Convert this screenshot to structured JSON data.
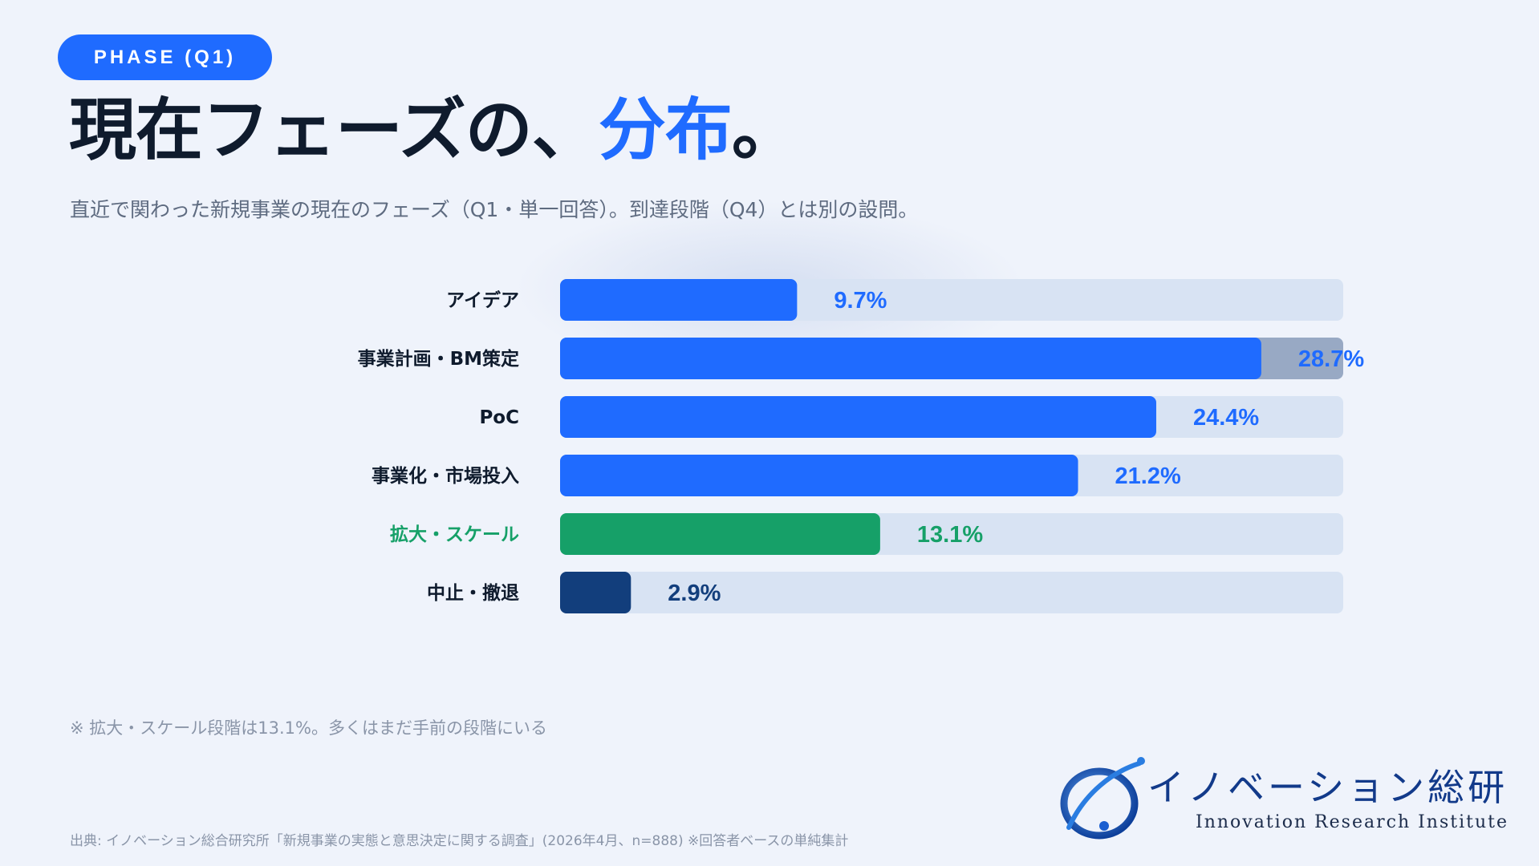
{
  "badge": "PHASE (Q1)",
  "title_main": "現在フェーズの、",
  "title_accent": "分布",
  "title_end": "。",
  "subtitle": "直近で関わった新規事業の現在のフェーズ（Q1・単一回答）。到達段階（Q4）とは別の設問。",
  "note": "※ 拡大・スケール段階は13.1%。多くはまだ手前の段階にいる",
  "source": "出典: イノベーション総合研究所「新規事業の実態と意思決定に関する調査」(2026年4月、n=888) ※回答者ベースの単純集計",
  "logo": {
    "name": "イノベーション総研",
    "subtitle": "Innovation Research Institute"
  },
  "colors": {
    "blue": "#1f6bff",
    "green": "#16a068",
    "navy": "#123e7c",
    "track": "#d8e3f3",
    "track_dark": "#98a9c4"
  },
  "chart_data": {
    "type": "bar",
    "orientation": "horizontal",
    "xlim": [
      0,
      30
    ],
    "grid": false,
    "categories": [
      "アイデア",
      "事業計画・BM策定",
      "PoC",
      "事業化・市場投入",
      "拡大・スケール",
      "中止・撤退"
    ],
    "values": [
      9.7,
      28.7,
      24.4,
      21.2,
      13.1,
      2.9
    ],
    "value_labels": [
      "9.7%",
      "28.7%",
      "24.4%",
      "21.2%",
      "13.1%",
      "2.9%"
    ],
    "bar_colors": [
      "#1f6bff",
      "#1f6bff",
      "#1f6bff",
      "#1f6bff",
      "#16a068",
      "#123e7c"
    ],
    "label_colors": [
      "#0f1b2d",
      "#0f1b2d",
      "#0f1b2d",
      "#0f1b2d",
      "#16a068",
      "#0f1b2d"
    ],
    "value_label_colors": [
      "#1f6bff",
      "#1f6bff",
      "#1f6bff",
      "#1f6bff",
      "#16a068",
      "#123e7c"
    ],
    "highlight_index": 1
  }
}
